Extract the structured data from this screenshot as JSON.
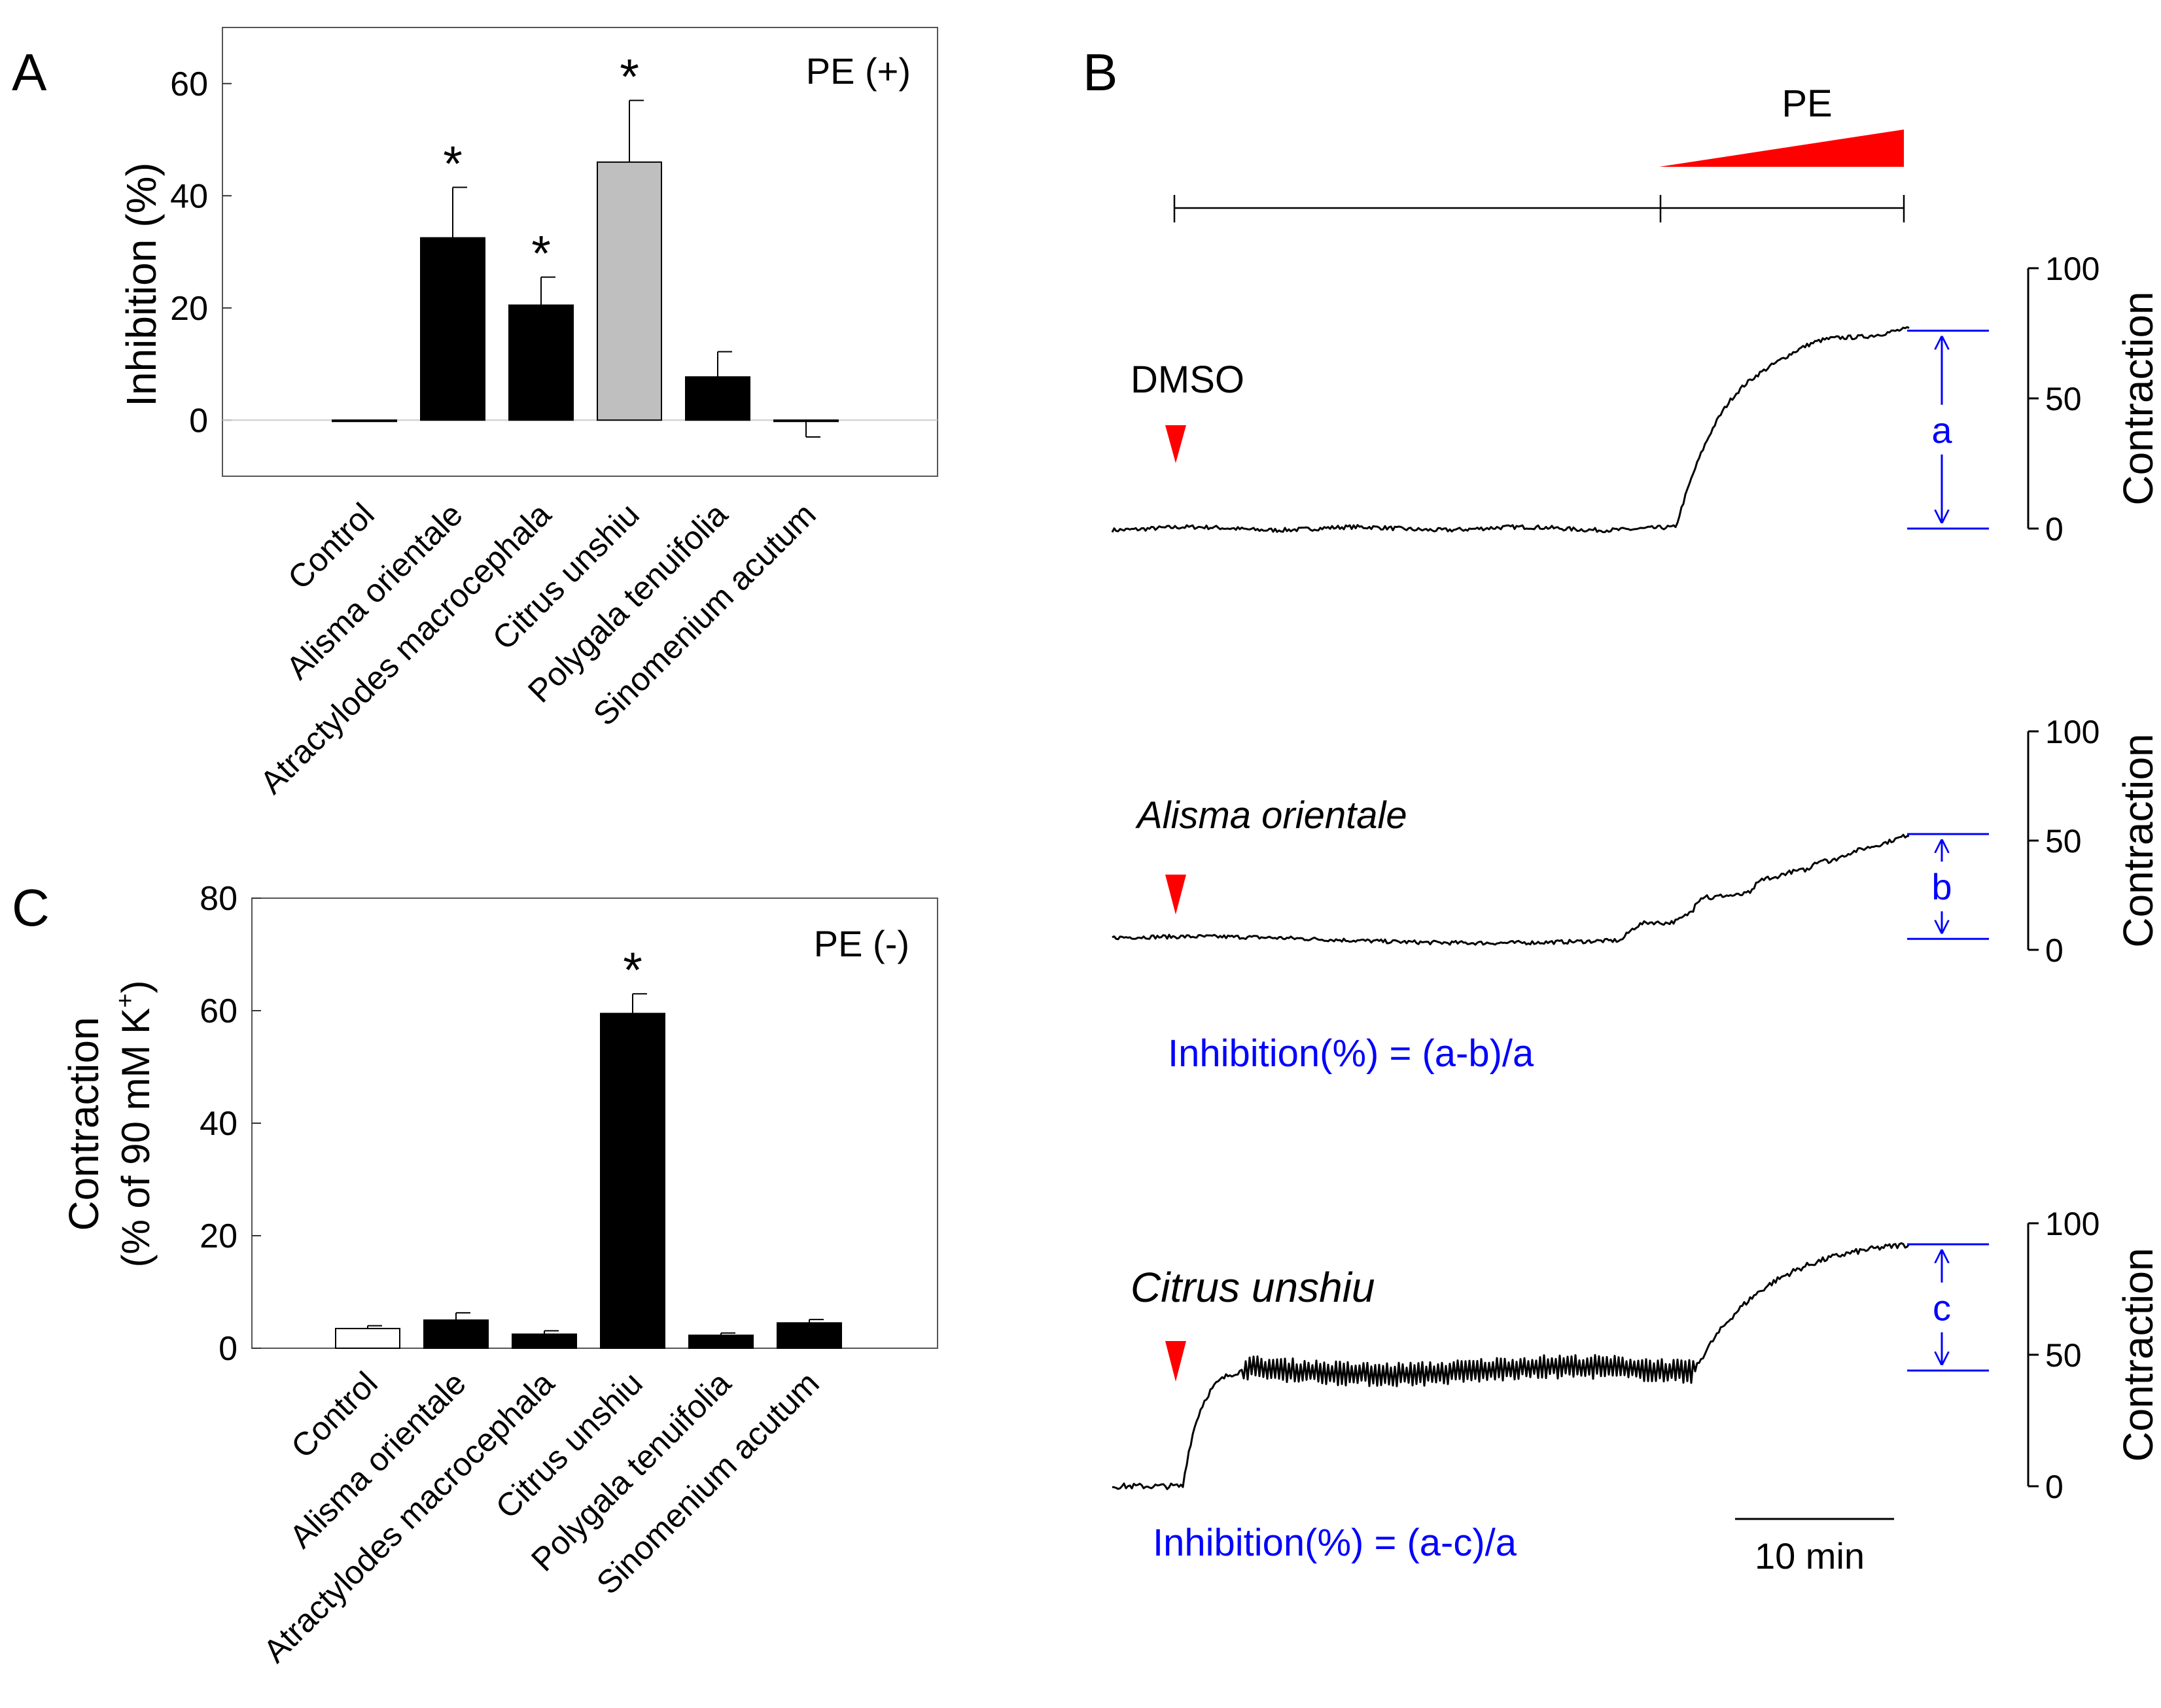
{
  "panel_labels": {
    "a": "A",
    "b": "B",
    "c": "C"
  },
  "colors": {
    "black": "#000000",
    "gray": "#bfbfbf",
    "white": "#ffffff",
    "red": "#ff0000",
    "blue": "#0000ff"
  },
  "chart_data": [
    {
      "id": "A",
      "type": "bar",
      "title": "",
      "annotation": "PE (+)",
      "ylabel": "Inhibition (%)",
      "xlabel": "",
      "ylim": [
        -10,
        70
      ],
      "yticks": [
        0,
        20,
        40,
        60
      ],
      "ytick_labels": [
        "0",
        "20",
        "40",
        "60"
      ],
      "categories": [
        "Control",
        "Alisma orientale",
        "Atractylodes macrocephala",
        "Citrus unshiu",
        "Polygala tenuifolia",
        "Sinomenium acutum"
      ],
      "values": [
        0,
        32.5,
        20.5,
        46,
        7.7,
        0
      ],
      "errors": [
        0,
        9,
        5,
        11,
        4.5,
        3
      ],
      "error_direction": [
        "up",
        "up",
        "up",
        "up",
        "up",
        "down"
      ],
      "bar_colors": [
        "#ffffff",
        "#000000",
        "#000000",
        "#bfbfbf",
        "#000000",
        "#000000"
      ],
      "significance": [
        "",
        "*",
        "*",
        "*",
        "",
        ""
      ]
    },
    {
      "id": "C",
      "type": "bar",
      "title": "",
      "annotation": "PE (-)",
      "ylabel_line1": "Contraction",
      "ylabel_line2": "(% of 90 mM K",
      "ylabel_sup": "+",
      "ylabel_close": ")",
      "xlabel": "",
      "ylim": [
        0,
        80
      ],
      "yticks": [
        0,
        20,
        40,
        60,
        80
      ],
      "ytick_labels": [
        "0",
        "20",
        "40",
        "60",
        "80"
      ],
      "categories": [
        "Control",
        "Alisma orientale",
        "Atractylodes macrocephala",
        "Citrus unshiu",
        "Polygala tenuifolia",
        "Sinomenium acutum"
      ],
      "values": [
        3.5,
        5,
        2.5,
        59.5,
        2.3,
        4.5
      ],
      "errors": [
        0.5,
        1.3,
        0.6,
        3.5,
        0.4,
        0.6
      ],
      "bar_colors": [
        "#ffffff",
        "#000000",
        "#000000",
        "#000000",
        "#000000",
        "#000000"
      ],
      "significance": [
        "",
        "",
        "",
        "*",
        "",
        ""
      ]
    },
    {
      "id": "B",
      "type": "line",
      "title": "",
      "protocol_label": "PE",
      "ylabel": "Contraction",
      "ylim": [
        0,
        100
      ],
      "yticks": [
        0,
        50,
        100
      ],
      "ytick_labels": [
        "0",
        "50",
        "100"
      ],
      "scale_bar_label": "10 min",
      "traces": [
        {
          "name": "DMSO",
          "italic": false,
          "marker_label": "a",
          "formula": "",
          "baseline": 0,
          "pretreatment_plateau": 0,
          "final": 76
        },
        {
          "name": "Alisma orientale",
          "italic": true,
          "marker_label": "b",
          "formula": "Inhibition(%) = (a-b)/a",
          "baseline": 5,
          "pretreatment_plateau": 5,
          "final": 53
        },
        {
          "name": "Citrus unshiu",
          "italic": true,
          "marker_label": "c",
          "formula": "Inhibition(%) = (a-c)/a",
          "baseline": 0,
          "pretreatment_plateau": 44,
          "final": 92
        }
      ]
    }
  ]
}
